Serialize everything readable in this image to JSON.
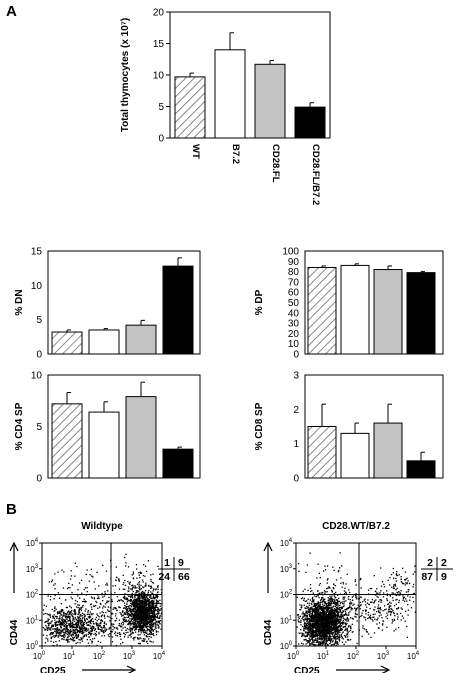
{
  "panels": {
    "a_label": "A",
    "b_label": "B"
  },
  "pattern_ids": [
    "hatch",
    "open",
    "gray",
    "solid"
  ],
  "chart_data": [
    {
      "id": "total",
      "type": "bar",
      "ylabel": "Total thymocytes (x 10⁷)",
      "ylim": [
        0,
        20
      ],
      "yticks": [
        "0",
        "5",
        "10",
        "15",
        "20"
      ],
      "categories": [
        "WT",
        "B7.2",
        "CD28.FL",
        "CD28.FL/B7.2"
      ],
      "values": [
        9.7,
        14.0,
        11.7,
        4.9
      ],
      "errors": [
        0.6,
        2.7,
        0.6,
        0.7
      ],
      "fills": [
        "hatch",
        "open",
        "gray",
        "solid"
      ]
    },
    {
      "id": "dn",
      "type": "bar",
      "ylabel": "% DN",
      "ylim": [
        0,
        15
      ],
      "yticks": [
        "0",
        "5",
        "10",
        "15"
      ],
      "values": [
        3.2,
        3.5,
        4.2,
        12.8
      ],
      "errors": [
        0.3,
        0.2,
        0.7,
        1.2
      ],
      "fills": [
        "hatch",
        "open",
        "gray",
        "solid"
      ]
    },
    {
      "id": "dp",
      "type": "bar",
      "ylabel": "% DP",
      "ylim": [
        0,
        100
      ],
      "yticks": [
        "0",
        "10",
        "20",
        "30",
        "40",
        "50",
        "60",
        "70",
        "80",
        "90",
        "100"
      ],
      "values": [
        84,
        86,
        82,
        79
      ],
      "errors": [
        1.5,
        1.5,
        3.5,
        1.0
      ],
      "fills": [
        "hatch",
        "open",
        "gray",
        "solid"
      ]
    },
    {
      "id": "cd4",
      "type": "bar",
      "ylabel": "% CD4 SP",
      "ylim": [
        0,
        10
      ],
      "yticks": [
        "0",
        "5",
        "10"
      ],
      "values": [
        7.2,
        6.4,
        7.9,
        2.8
      ],
      "errors": [
        1.1,
        1.0,
        1.4,
        0.2
      ],
      "fills": [
        "hatch",
        "open",
        "gray",
        "solid"
      ]
    },
    {
      "id": "cd8",
      "type": "bar",
      "ylabel": "% CD8 SP",
      "ylim": [
        0,
        3
      ],
      "yticks": [
        "0",
        "1",
        "2",
        "3"
      ],
      "values": [
        1.5,
        1.3,
        1.6,
        0.5
      ],
      "errors": [
        0.65,
        0.3,
        0.55,
        0.25
      ],
      "fills": [
        "hatch",
        "open",
        "gray",
        "solid"
      ]
    },
    {
      "id": "flow_wt",
      "type": "scatter",
      "title": "Wildtype",
      "xlabel": "CD25",
      "ylabel": "CD44",
      "scale": "log",
      "ticks": [
        "0",
        "1",
        "2",
        "3",
        "4"
      ],
      "quadrants": {
        "upper_left": "1",
        "upper_right": "9",
        "lower_left": "24",
        "lower_right": "66"
      }
    },
    {
      "id": "flow_mut",
      "type": "scatter",
      "title": "CD28.WT/B7.2",
      "xlabel": "CD25",
      "ylabel": "CD44",
      "scale": "log",
      "ticks": [
        "0",
        "1",
        "2",
        "3",
        "4"
      ],
      "quadrants": {
        "upper_left": "2",
        "upper_right": "2",
        "lower_left": "87",
        "lower_right": "9"
      }
    }
  ]
}
